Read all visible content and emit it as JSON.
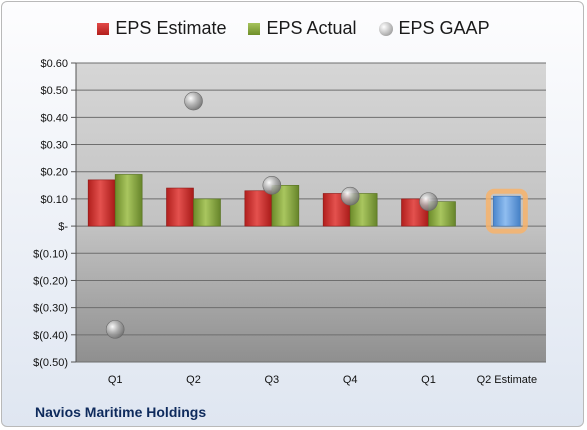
{
  "legend": {
    "estimate": "EPS Estimate",
    "actual": "EPS Actual",
    "gaap": "EPS GAAP"
  },
  "company": "Navios Maritime Holdings",
  "colors": {
    "estimate": "#c8312f",
    "actual": "#88a83f",
    "gaap": "#a0a0a0",
    "estimate_future": "#6fa6e0",
    "highlight": "#f7b36b"
  },
  "chart_data": {
    "type": "bar",
    "categories": [
      "Q1",
      "Q2",
      "Q3",
      "Q4",
      "Q1",
      "Q2 Estimate"
    ],
    "series": [
      {
        "name": "EPS Estimate",
        "values": [
          0.17,
          0.14,
          0.13,
          0.12,
          0.1,
          0.11
        ]
      },
      {
        "name": "EPS Actual",
        "values": [
          0.19,
          0.1,
          0.15,
          0.12,
          0.09,
          null
        ]
      },
      {
        "name": "EPS GAAP",
        "values": [
          -0.38,
          0.46,
          0.15,
          0.11,
          0.09,
          null
        ]
      }
    ],
    "ylim": [
      -0.5,
      0.6
    ],
    "yticks": [
      0.6,
      0.5,
      0.4,
      0.3,
      0.2,
      0.1,
      0,
      -0.1,
      -0.2,
      -0.3,
      -0.4,
      -0.5
    ],
    "ytick_labels": [
      "$0.60",
      "$0.50",
      "$0.40",
      "$0.30",
      "$0.20",
      "$0.10",
      "$-",
      "$(0.10)",
      "$(0.20)",
      "$(0.30)",
      "$(0.40)",
      "$(0.50)"
    ],
    "grid": true,
    "legend_position": "top"
  }
}
